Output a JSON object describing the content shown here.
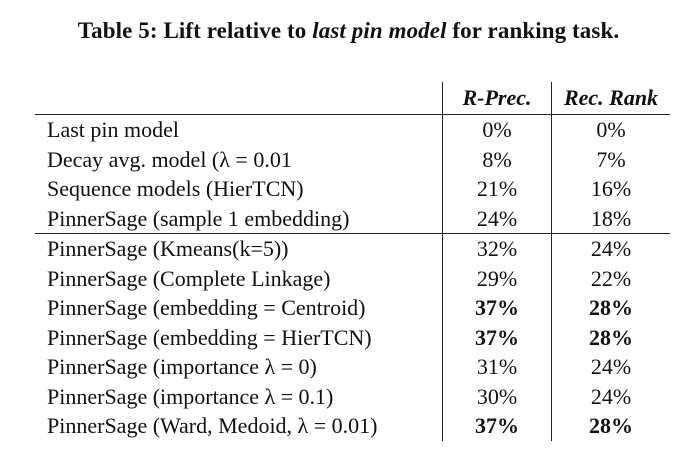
{
  "caption": {
    "prefix": "Table 5: Lift relative to ",
    "italic": "last pin model",
    "suffix": " for ranking task."
  },
  "table": {
    "headers": [
      "",
      "R-Prec.",
      "Rec. Rank"
    ],
    "rows": [
      {
        "name": "Last pin model",
        "r_prec": "0%",
        "rec_rank": "0%",
        "bold": false
      },
      {
        "name": "Decay avg. model (λ = 0.01",
        "r_prec": "8%",
        "rec_rank": "7%",
        "bold": false
      },
      {
        "name": "Sequence models (HierTCN)",
        "r_prec": "21%",
        "rec_rank": "16%",
        "bold": false
      },
      {
        "name": "PinnerSage (sample 1 embedding)",
        "r_prec": "24%",
        "rec_rank": "18%",
        "bold": false
      },
      {
        "name": "PinnerSage (Kmeans(k=5))",
        "r_prec": "32%",
        "rec_rank": "24%",
        "bold": false
      },
      {
        "name": "PinnerSage (Complete Linkage)",
        "r_prec": "29%",
        "rec_rank": "22%",
        "bold": false
      },
      {
        "name": "PinnerSage (embedding = Centroid)",
        "r_prec": "37%",
        "rec_rank": "28%",
        "bold": true
      },
      {
        "name": "PinnerSage (embedding = HierTCN)",
        "r_prec": "37%",
        "rec_rank": "28%",
        "bold": true
      },
      {
        "name": "PinnerSage (importance λ = 0)",
        "r_prec": "31%",
        "rec_rank": "24%",
        "bold": false
      },
      {
        "name": "PinnerSage (importance λ = 0.1)",
        "r_prec": "30%",
        "rec_rank": "24%",
        "bold": false
      },
      {
        "name": "PinnerSage (Ward, Medoid, λ = 0.01)",
        "r_prec": "37%",
        "rec_rank": "28%",
        "bold": true
      }
    ]
  }
}
